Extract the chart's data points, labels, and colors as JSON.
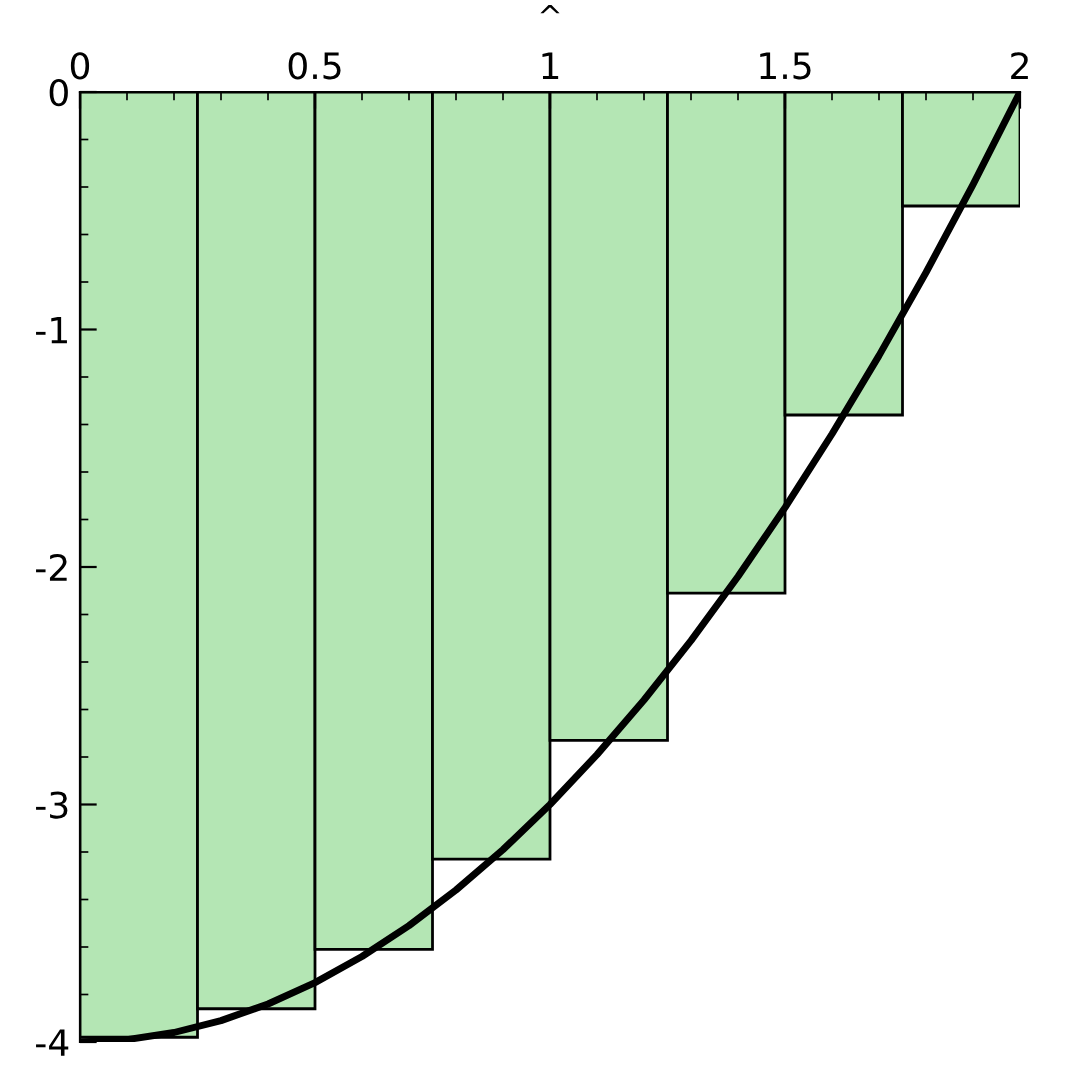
{
  "chart_data": {
    "type": "histogram",
    "title": "^",
    "series": [
      {
        "bins": [
          0,
          0.25,
          0.5,
          0.75,
          1,
          1.25,
          1.5,
          1.75,
          2
        ],
        "values": [
          -3.98,
          -3.86,
          -3.61,
          -3.23,
          -2.73,
          -2.11,
          -1.36,
          -0.48
        ],
        "color": "#b4e6b4"
      },
      {
        "type": "line",
        "x": [
          0,
          0.1,
          0.2,
          0.3,
          0.4,
          0.5,
          0.6,
          0.7,
          0.8,
          0.9,
          1,
          1.1,
          1.2,
          1.3,
          1.4,
          1.5,
          1.6,
          1.7,
          1.8,
          1.9,
          2
        ],
        "values": [
          -4,
          -3.99,
          -3.96,
          -3.91,
          -3.84,
          -3.75,
          -3.64,
          -3.51,
          -3.36,
          -3.19,
          -3,
          -2.79,
          -2.56,
          -2.31,
          -2.04,
          -1.75,
          -1.44,
          -1.11,
          -0.76,
          -0.39,
          0
        ],
        "color": "#000000"
      }
    ],
    "xlim": [
      0,
      2
    ],
    "xticks": [
      0,
      0.5,
      1,
      1.5,
      2
    ],
    "ylim": [
      -4,
      0
    ],
    "yticks": [
      0,
      -1,
      -2,
      -3,
      -4
    ],
    "grid": false,
    "legend": false
  }
}
